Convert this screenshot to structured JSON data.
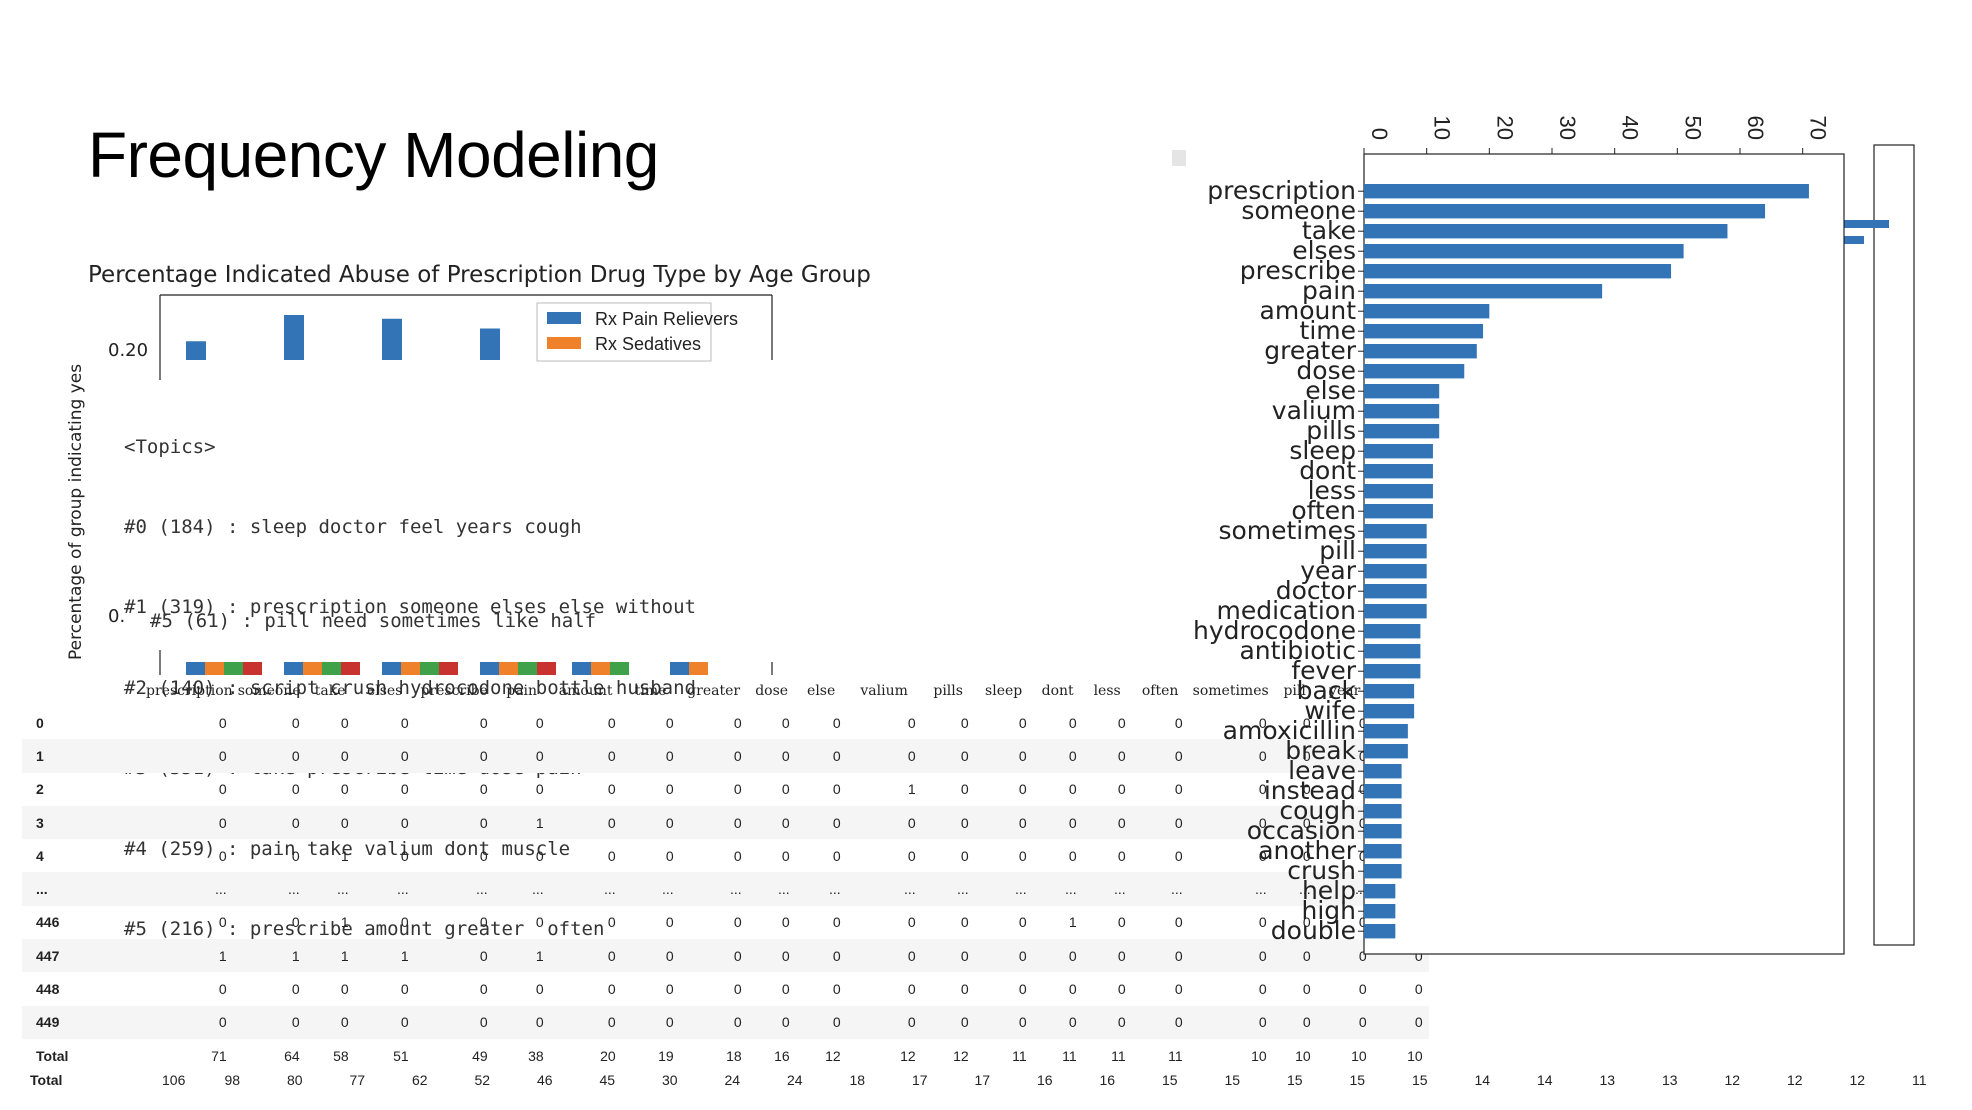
{
  "slide": {
    "title": "Frequency Modeling"
  },
  "chart_data": [
    {
      "type": "bar",
      "title": "Percentage Indicated Abuse of Prescription Drug Type by Age Group",
      "ylabel": "Percentage of group indicating yes",
      "yticks": [
        "0.20",
        "0.05"
      ],
      "legend": [
        "Rx Pain Relievers",
        "Rx Sedatives"
      ],
      "series": [
        {
          "name": "Rx Pain Relievers",
          "values": [
            0.195,
            0.23,
            0.225,
            0.212,
            0.195,
            0.06
          ]
        },
        {
          "name": "Rx Sedatives",
          "values": [
            0.06,
            0.06,
            0.06,
            0.06,
            0.06,
            0.06
          ]
        }
      ],
      "colors": [
        "#3274b5",
        "#f0812b",
        "#3fa14a",
        "#c8322f"
      ]
    },
    {
      "type": "bar",
      "orientation": "horizontal",
      "categories": [
        "prescription",
        "someone",
        "take",
        "elses",
        "prescribe",
        "pain",
        "amount",
        "time",
        "greater",
        "dose",
        "else",
        "valium",
        "pills",
        "sleep",
        "dont",
        "less",
        "often",
        "sometimes",
        "pill",
        "year",
        "doctor",
        "medication",
        "hydrocodone",
        "antibiotic",
        "fever",
        "back",
        "wife",
        "amoxicillin",
        "break",
        "leave",
        "instead",
        "cough",
        "occasion",
        "another",
        "crush",
        "help",
        "high",
        "double"
      ],
      "values": [
        71,
        64,
        58,
        51,
        49,
        38,
        20,
        19,
        18,
        16,
        12,
        12,
        12,
        11,
        11,
        11,
        11,
        10,
        10,
        10,
        10,
        10,
        9,
        9,
        9,
        8,
        8,
        7,
        7,
        6,
        6,
        6,
        6,
        6,
        6,
        5,
        5,
        5
      ],
      "xticks_top": [
        "0",
        "10",
        "20",
        "30",
        "40",
        "50",
        "60",
        "70"
      ],
      "color": "#3274b5"
    }
  ],
  "topics": {
    "header": "<Topics>",
    "lines": [
      "#0 (184) : sleep doctor feel years cough",
      "#1 (319) : prescription someone elses else without",
      "#2 (140) : script crush hydrocodone bottle husband",
      "#3 (351) : take prescribe time dose pain",
      "#4 (259) : pain take valium dont muscle",
      "#5 (216) : prescribe amount greater  often"
    ],
    "extra": "#5 (61) : pill need sometimes like half"
  },
  "table": {
    "columns": [
      "prescription",
      "someone",
      "take",
      "elses",
      "prescribe",
      "pain",
      "amount",
      "time",
      "greater",
      "dose",
      "else",
      "valium",
      "pills",
      "sleep",
      "dont",
      "less",
      "often",
      "sometimes",
      "pill",
      "year",
      "doctor"
    ],
    "rows": [
      {
        "idx": "0",
        "vals": [
          "0",
          "0",
          "0",
          "0",
          "0",
          "0",
          "0",
          "0",
          "0",
          "0",
          "0",
          "0",
          "0",
          "0",
          "0",
          "0",
          "0",
          "0",
          "0",
          "0",
          "0"
        ]
      },
      {
        "idx": "1",
        "vals": [
          "0",
          "0",
          "0",
          "0",
          "0",
          "0",
          "0",
          "0",
          "0",
          "0",
          "0",
          "0",
          "0",
          "0",
          "0",
          "0",
          "0",
          "0",
          "0",
          "0",
          "0"
        ]
      },
      {
        "idx": "2",
        "vals": [
          "0",
          "0",
          "0",
          "0",
          "0",
          "0",
          "0",
          "0",
          "0",
          "0",
          "0",
          "1",
          "0",
          "0",
          "0",
          "0",
          "0",
          "0",
          "0",
          "0",
          "0"
        ]
      },
      {
        "idx": "3",
        "vals": [
          "0",
          "0",
          "0",
          "0",
          "0",
          "1",
          "0",
          "0",
          "0",
          "0",
          "0",
          "0",
          "0",
          "0",
          "0",
          "0",
          "0",
          "0",
          "0",
          "0",
          "0"
        ]
      },
      {
        "idx": "4",
        "vals": [
          "0",
          "0",
          "1",
          "0",
          "0",
          "0",
          "0",
          "0",
          "0",
          "0",
          "0",
          "0",
          "0",
          "0",
          "0",
          "0",
          "0",
          "0",
          "0",
          "0",
          "0"
        ]
      },
      {
        "idx": "...",
        "vals": [
          "...",
          "...",
          "...",
          "...",
          "...",
          "...",
          "...",
          "...",
          "...",
          "...",
          "...",
          "...",
          "...",
          "...",
          "...",
          "...",
          "...",
          "...",
          "...",
          "...",
          "..."
        ]
      },
      {
        "idx": "446",
        "vals": [
          "0",
          "0",
          "1",
          "0",
          "0",
          "0",
          "0",
          "0",
          "0",
          "0",
          "0",
          "0",
          "0",
          "0",
          "1",
          "0",
          "0",
          "0",
          "0",
          "0",
          "0"
        ]
      },
      {
        "idx": "447",
        "vals": [
          "1",
          "1",
          "1",
          "1",
          "0",
          "1",
          "0",
          "0",
          "0",
          "0",
          "0",
          "0",
          "0",
          "0",
          "0",
          "0",
          "0",
          "0",
          "0",
          "0",
          "0"
        ]
      },
      {
        "idx": "448",
        "vals": [
          "0",
          "0",
          "0",
          "0",
          "0",
          "0",
          "0",
          "0",
          "0",
          "0",
          "0",
          "0",
          "0",
          "0",
          "0",
          "0",
          "0",
          "0",
          "0",
          "0",
          "0"
        ]
      },
      {
        "idx": "449",
        "vals": [
          "0",
          "0",
          "0",
          "0",
          "0",
          "0",
          "0",
          "0",
          "0",
          "0",
          "0",
          "0",
          "0",
          "0",
          "0",
          "0",
          "0",
          "0",
          "0",
          "0",
          "0"
        ]
      },
      {
        "idx": "Total",
        "vals": [
          "71",
          "64",
          "58",
          "51",
          "49",
          "38",
          "20",
          "19",
          "18",
          "16",
          "12",
          "12",
          "12",
          "11",
          "11",
          "11",
          "11",
          "10",
          "10",
          "10",
          "10"
        ]
      }
    ],
    "total2": {
      "idx": "Total",
      "vals": [
        "106",
        "98",
        "80",
        "77",
        "62",
        "52",
        "46",
        "45",
        "30",
        "24",
        "24",
        "18",
        "17",
        "17",
        "16",
        "16",
        "15",
        "15",
        "15",
        "15",
        "15",
        "14",
        "14",
        "13",
        "13",
        "12",
        "12",
        "12",
        "11"
      ]
    }
  }
}
